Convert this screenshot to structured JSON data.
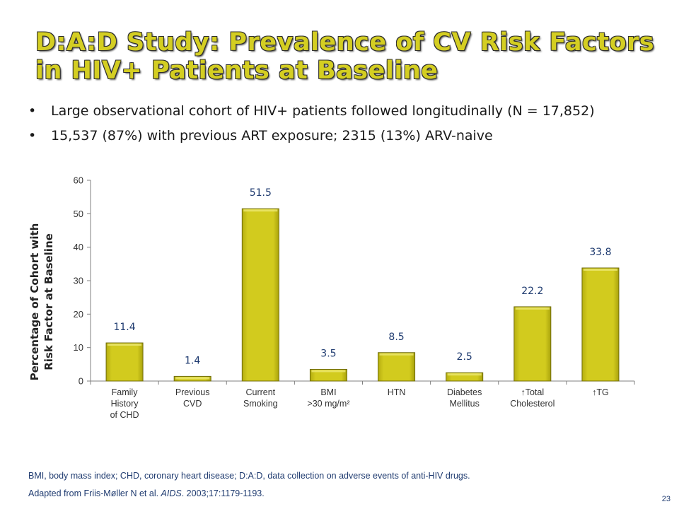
{
  "slide": {
    "title_line1": "D:A:D Study: Prevalence of CV Risk Factors",
    "title_line2": "in HIV+ Patients at Baseline",
    "bullets": [
      "Large observational cohort of HIV+ patients followed longitudinally (N = 17,852)",
      "15,537 (87%) with previous ART exposure; 2315 (13%) ARV-naive"
    ],
    "footnote": "BMI, body mass index; CHD, coronary heart disease; D:A:D, data collection on adverse events of anti-HIV drugs.",
    "citation_prefix": "Adapted from Friis-Møller N et al. ",
    "citation_journal": "AIDS",
    "citation_suffix": ". 2003;17:1179-1193.",
    "slide_number": "23"
  },
  "chart_data": {
    "type": "bar",
    "categories": [
      [
        "Family",
        "History",
        "of CHD"
      ],
      [
        "Previous",
        "CVD"
      ],
      [
        "Current",
        "Smoking"
      ],
      [
        "BMI",
        ">30 mg/m²"
      ],
      [
        "HTN"
      ],
      [
        "Diabetes",
        "Mellitus"
      ],
      [
        "↑Total",
        "Cholesterol"
      ],
      [
        "↑TG"
      ]
    ],
    "values": [
      11.4,
      1.4,
      51.5,
      3.5,
      8.5,
      2.5,
      22.2,
      33.8
    ],
    "value_labels": [
      "11.4",
      "1.4",
      "51.5",
      "3.5",
      "8.5",
      "2.5",
      "22.2",
      "33.8"
    ],
    "ylabel_lines": [
      "Percentage of Cohort with",
      "Risk Factor at Baseline"
    ],
    "ylim": [
      0,
      60
    ],
    "yticks": [
      0,
      10,
      20,
      30,
      40,
      50,
      60
    ],
    "grid": false,
    "colors": {
      "bar": "#d2cb1e",
      "bar_edge": "#6e6a08",
      "label": "#1f3b70",
      "axis": "#808080"
    }
  }
}
